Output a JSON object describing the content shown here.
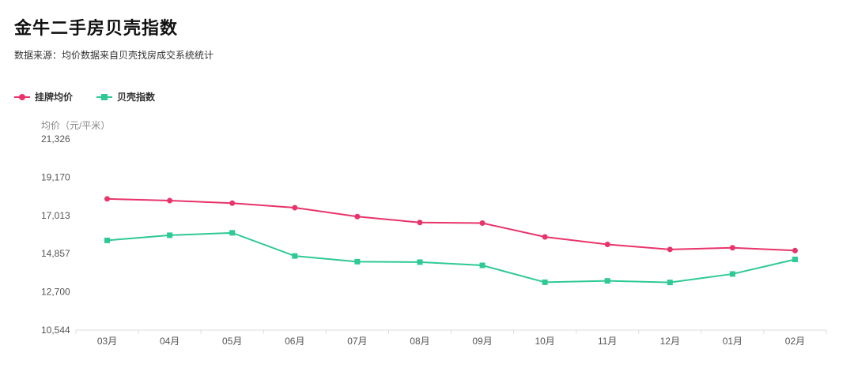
{
  "header": {
    "title": "金牛二手房贝壳指数",
    "subtitle": "数据来源：均价数据来自贝壳找房成交系统统计"
  },
  "colors": {
    "series_price": "#e8336b",
    "series_index": "#2ec995",
    "axis": "#dddddd"
  },
  "chart_data": {
    "type": "line",
    "ylabel": "均价（元/平米）",
    "categories": [
      "03月",
      "04月",
      "05月",
      "06月",
      "07月",
      "08月",
      "09月",
      "10月",
      "11月",
      "12月",
      "01月",
      "02月"
    ],
    "yticks": [
      "10,544",
      "12,700",
      "14,857",
      "17,013",
      "19,170",
      "21,326"
    ],
    "ylim": [
      10544,
      21326
    ],
    "legend_position": "top-left",
    "grid": false,
    "series": [
      {
        "name": "挂牌均价",
        "marker": "circle",
        "values": [
          17948,
          17852,
          17704,
          17450,
          16948,
          16614,
          16582,
          15802,
          15377,
          15096,
          15188,
          15031
        ]
      },
      {
        "name": "贝壳指数",
        "marker": "square",
        "values": [
          15604,
          15895,
          16032,
          14725,
          14405,
          14379,
          14196,
          13243,
          13321,
          13234,
          13710,
          14533
        ]
      }
    ]
  }
}
